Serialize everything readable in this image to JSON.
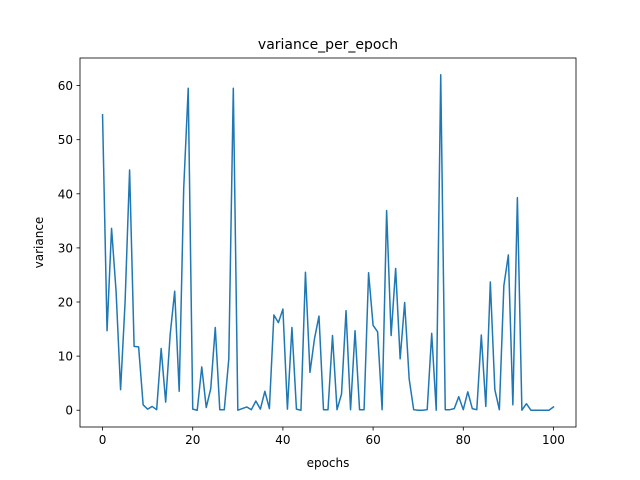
{
  "chart_data": {
    "type": "line",
    "title": "variance_per_epoch",
    "xlabel": "epochs",
    "ylabel": "variance",
    "xlim": [
      -5,
      105
    ],
    "ylim": [
      -3.1,
      65.1
    ],
    "xticks": [
      0,
      20,
      40,
      60,
      80,
      100
    ],
    "yticks": [
      0,
      10,
      20,
      30,
      40,
      50,
      60
    ],
    "grid": false,
    "legend": "none",
    "series": [
      {
        "color": "#1f77b4",
        "x": [
          0,
          1,
          2,
          3,
          4,
          5,
          6,
          7,
          8,
          9,
          10,
          11,
          12,
          13,
          14,
          15,
          16,
          17,
          18,
          19,
          20,
          21,
          22,
          23,
          24,
          25,
          26,
          27,
          28,
          29,
          30,
          31,
          32,
          33,
          34,
          35,
          36,
          37,
          38,
          39,
          40,
          41,
          42,
          43,
          44,
          45,
          46,
          47,
          48,
          49,
          50,
          51,
          52,
          53,
          54,
          55,
          56,
          57,
          58,
          59,
          60,
          61,
          62,
          63,
          64,
          65,
          66,
          67,
          68,
          69,
          70,
          71,
          72,
          73,
          74,
          75,
          76,
          77,
          78,
          79,
          80,
          81,
          82,
          83,
          84,
          85,
          86,
          87,
          88,
          89,
          90,
          91,
          92,
          93,
          94,
          95,
          96,
          97,
          98,
          99,
          100
        ],
        "y": [
          54.6,
          14.7,
          33.6,
          22.0,
          3.8,
          20.0,
          44.4,
          11.8,
          11.7,
          1.0,
          0.2,
          0.7,
          0.1,
          11.4,
          1.5,
          14.0,
          22.0,
          3.5,
          41.0,
          59.5,
          0.2,
          0.0,
          8.0,
          0.5,
          4.0,
          15.3,
          0.1,
          0.1,
          9.5,
          59.5,
          0.0,
          0.3,
          0.6,
          0.1,
          1.7,
          0.2,
          3.5,
          0.3,
          17.6,
          16.2,
          18.7,
          0.2,
          15.3,
          0.2,
          0.0,
          25.5,
          7.0,
          13.2,
          17.4,
          0.1,
          0.1,
          13.8,
          0.1,
          3.0,
          18.4,
          0.1,
          14.7,
          0.1,
          0.1,
          25.4,
          15.7,
          14.5,
          0.1,
          36.9,
          13.8,
          26.2,
          9.5,
          19.9,
          5.8,
          0.1,
          0.0,
          0.0,
          0.1,
          14.2,
          0.0,
          62.0,
          0.1,
          0.1,
          0.3,
          2.5,
          0.1,
          3.4,
          0.3,
          0.1,
          13.9,
          0.7,
          23.7,
          3.8,
          0.1,
          23.0,
          28.7,
          1.0,
          39.3,
          0.0,
          1.2,
          0.0,
          0.0,
          0.0,
          0.0,
          0.0,
          0.6
        ]
      }
    ]
  }
}
